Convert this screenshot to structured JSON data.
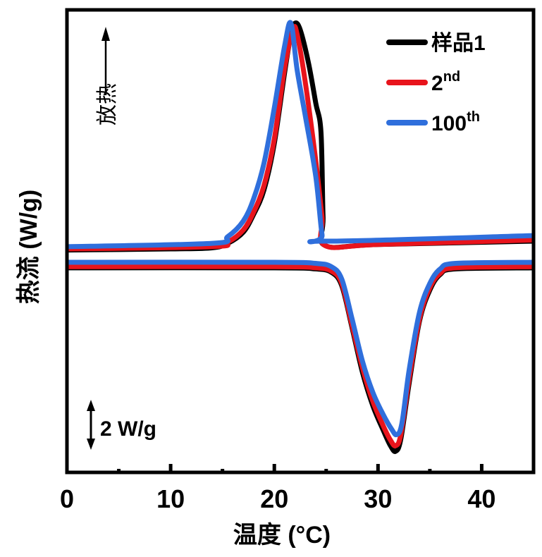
{
  "chart_data": {
    "type": "line",
    "title": "",
    "xlabel": "温度 (°C)",
    "ylabel": "热流 (W/g)",
    "xlim": [
      0,
      45
    ],
    "ylim": [
      0,
      20.8
    ],
    "xticks": [
      0,
      10,
      20,
      30,
      40
    ],
    "xtick_labels": [
      "0",
      "10",
      "20",
      "30",
      "40"
    ],
    "grid": false,
    "legend_position": "top-right",
    "annotations": {
      "exo_label": "放热",
      "scale_bar_label": "2 W/g",
      "scale_bar_value": 2
    },
    "series": [
      {
        "name": "样品1",
        "label_main": "样品1",
        "label_sup": "",
        "color": "#000000",
        "segments": [
          {
            "branch": "cooling",
            "x": [
              0,
              10,
              14,
              15.5,
              17,
              18,
              19,
              20,
              21,
              21.6,
              22,
              22.5,
              23.3,
              24,
              24.5,
              24.7,
              24.9,
              30,
              45
            ],
            "y": [
              10.0,
              10.05,
              10.1,
              10.3,
              10.8,
              11.6,
              12.7,
              14.8,
              18.0,
              19.7,
              20.2,
              19.9,
              18.4,
              16.6,
              15.3,
              11.5,
              10.2,
              10.25,
              10.4
            ]
          },
          {
            "branch": "heating",
            "x": [
              0,
              20,
              24,
              25.5,
              26.5,
              27.5,
              28.5,
              29.5,
              30.5,
              31.2,
              31.7,
              32.2,
              33,
              34,
              35,
              36,
              37.5,
              45
            ],
            "y": [
              9.2,
              9.2,
              9.15,
              9.0,
              8.4,
              6.5,
              4.5,
              3.0,
              1.9,
              1.2,
              0.95,
              1.5,
              4.0,
              6.8,
              8.2,
              8.9,
              9.15,
              9.2
            ]
          }
        ]
      },
      {
        "name": "2nd",
        "label_main": "2",
        "label_sup": "nd",
        "color": "#e8141c",
        "segments": [
          {
            "branch": "cooling",
            "x": [
              0,
              14,
              15.5,
              17,
              18,
              19,
              20,
              21,
              21.8,
              22.2,
              23,
              24,
              24.6,
              24.9,
              30,
              45
            ],
            "y": [
              10.05,
              10.15,
              10.35,
              10.9,
              11.7,
              12.9,
              15.0,
              18.2,
              19.9,
              19.7,
              17.5,
              14.0,
              11.5,
              10.2,
              10.25,
              10.45
            ]
          },
          {
            "branch": "heating",
            "x": [
              0,
              20,
              24,
              25.5,
              26.5,
              27.5,
              28.5,
              29.5,
              30.5,
              31.2,
              31.7,
              32.2,
              33,
              34,
              35,
              36,
              37.5,
              45
            ],
            "y": [
              9.25,
              9.25,
              9.2,
              9.05,
              8.5,
              6.6,
              4.7,
              3.2,
              2.1,
              1.45,
              1.2,
              1.7,
              4.2,
              6.9,
              8.3,
              8.95,
              9.2,
              9.25
            ]
          }
        ]
      },
      {
        "name": "100th",
        "label_main": "100",
        "label_sup": "th",
        "color": "#2f6fdc",
        "segments": [
          {
            "branch": "cooling",
            "x": [
              0,
              14,
              15.5,
              17,
              18,
              19,
              20,
              21,
              21.6,
              22.2,
              23,
              24,
              24.6,
              25,
              45
            ],
            "y": [
              10.15,
              10.3,
              10.6,
              11.3,
              12.3,
              13.9,
              16.4,
              19.2,
              20.2,
              18.1,
              16.0,
              13.3,
              10.7,
              10.4,
              10.65
            ]
          },
          {
            "branch": "heating",
            "x": [
              0,
              20,
              24,
              25.5,
              26.5,
              27.5,
              28.5,
              29.5,
              30.5,
              31.3,
              31.8,
              32.3,
              33,
              34,
              35,
              36,
              37.5,
              45
            ],
            "y": [
              9.45,
              9.45,
              9.4,
              9.25,
              8.7,
              6.9,
              5.0,
              3.6,
              2.6,
              1.95,
              1.7,
              2.2,
              4.6,
              7.2,
              8.5,
              9.15,
              9.4,
              9.45
            ]
          }
        ]
      }
    ]
  }
}
